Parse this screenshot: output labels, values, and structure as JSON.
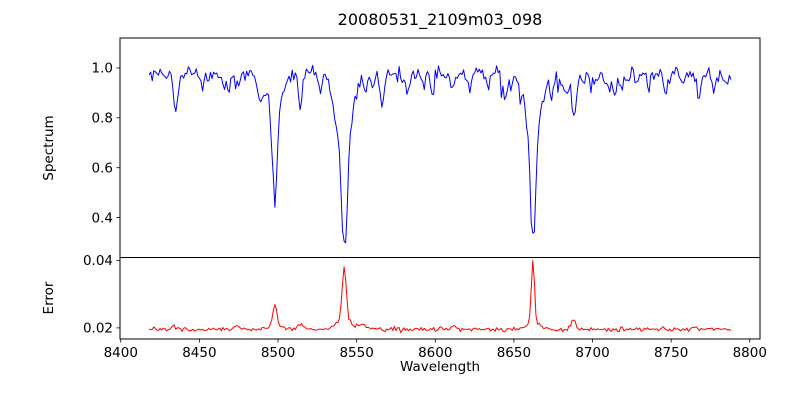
{
  "chart_data": {
    "type": "line",
    "title": "20080531_2109m03_098",
    "xlabel": "Wavelength",
    "x_range": [
      8418,
      8788
    ],
    "x_step": 1.0,
    "xlim": [
      8399.5,
      8806.5
    ],
    "xticks": [
      8400,
      8450,
      8500,
      8550,
      8600,
      8650,
      8700,
      8750,
      8800
    ],
    "xtick_labels": [
      "8400",
      "8450",
      "8500",
      "8550",
      "8600",
      "8650",
      "8700",
      "8750",
      "8800"
    ],
    "grid": false,
    "legend": "none",
    "seed": 20080531,
    "panels": [
      {
        "name": "spectrum",
        "ylabel": "Spectrum",
        "ylim": [
          0.24,
          1.12
        ],
        "yticks": [
          0.4,
          0.6,
          0.8,
          1.0
        ],
        "ytick_labels": [
          "0.4",
          "0.6",
          "0.8",
          "1.0"
        ],
        "series": {
          "name": "spectrum-flux",
          "color": "#0000ff",
          "continuum": 0.977,
          "noise_sigma": 0.016,
          "absorption_lines": [
            {
              "center": 8498.0,
              "depth": 0.35,
              "sigma": 1.5
            },
            {
              "center": 8498.0,
              "depth": 0.14,
              "sigma": 4.0
            },
            {
              "center": 8542.1,
              "depth": 0.44,
              "sigma": 1.9
            },
            {
              "center": 8542.1,
              "depth": 0.27,
              "sigma": 5.0
            },
            {
              "center": 8662.1,
              "depth": 0.43,
              "sigma": 1.7
            },
            {
              "center": 8662.1,
              "depth": 0.24,
              "sigma": 4.5
            },
            {
              "center": 8434.5,
              "depth": 0.12,
              "sigma": 1.3
            },
            {
              "center": 8452.0,
              "depth": 0.06,
              "sigma": 1.0
            },
            {
              "center": 8468.5,
              "depth": 0.09,
              "sigma": 1.2
            },
            {
              "center": 8488.0,
              "depth": 0.06,
              "sigma": 1.0
            },
            {
              "center": 8514.1,
              "depth": 0.14,
              "sigma": 1.4
            },
            {
              "center": 8527.0,
              "depth": 0.08,
              "sigma": 1.1
            },
            {
              "center": 8556.0,
              "depth": 0.07,
              "sigma": 1.0
            },
            {
              "center": 8566.0,
              "depth": 0.12,
              "sigma": 1.3
            },
            {
              "center": 8582.0,
              "depth": 0.07,
              "sigma": 1.0
            },
            {
              "center": 8598.0,
              "depth": 0.08,
              "sigma": 1.1
            },
            {
              "center": 8611.0,
              "depth": 0.06,
              "sigma": 1.0
            },
            {
              "center": 8622.0,
              "depth": 0.07,
              "sigma": 1.0
            },
            {
              "center": 8634.0,
              "depth": 0.05,
              "sigma": 1.0
            },
            {
              "center": 8644.0,
              "depth": 0.11,
              "sigma": 1.3
            },
            {
              "center": 8674.0,
              "depth": 0.09,
              "sigma": 1.2
            },
            {
              "center": 8688.0,
              "depth": 0.17,
              "sigma": 1.6
            },
            {
              "center": 8699.0,
              "depth": 0.07,
              "sigma": 1.0
            },
            {
              "center": 8710.0,
              "depth": 0.08,
              "sigma": 1.1
            },
            {
              "center": 8718.0,
              "depth": 0.07,
              "sigma": 1.0
            },
            {
              "center": 8728.0,
              "depth": 0.06,
              "sigma": 1.0
            },
            {
              "center": 8736.0,
              "depth": 0.07,
              "sigma": 1.0
            },
            {
              "center": 8747.0,
              "depth": 0.08,
              "sigma": 1.1
            },
            {
              "center": 8757.0,
              "depth": 0.06,
              "sigma": 1.0
            },
            {
              "center": 8768.0,
              "depth": 0.07,
              "sigma": 1.0
            },
            {
              "center": 8777.0,
              "depth": 0.08,
              "sigma": 1.0
            },
            {
              "center": 8785.0,
              "depth": 0.06,
              "sigma": 1.0
            }
          ],
          "texture_lines": {
            "count": 26,
            "depth_min": 0.02,
            "depth_max": 0.06,
            "sigma_min": 0.8,
            "sigma_max": 1.5,
            "x_min": 8425,
            "x_max": 8790
          }
        }
      },
      {
        "name": "error",
        "ylabel": "Error",
        "ylim": [
          0.0167,
          0.0409
        ],
        "yticks": [
          0.02,
          0.04
        ],
        "ytick_labels": [
          "0.02",
          "0.04"
        ],
        "series": {
          "name": "error-level",
          "color": "#ff0000",
          "baseline": 0.0196,
          "noise_sigma": 0.00033,
          "peaks": [
            {
              "center": 8498.0,
              "height": 0.0065,
              "sigma": 1.3
            },
            {
              "center": 8498.0,
              "height": 0.001,
              "sigma": 4.0
            },
            {
              "center": 8542.1,
              "height": 0.0155,
              "sigma": 1.3
            },
            {
              "center": 8542.1,
              "height": 0.003,
              "sigma": 5.0
            },
            {
              "center": 8662.1,
              "height": 0.0185,
              "sigma": 1.0
            },
            {
              "center": 8662.1,
              "height": 0.002,
              "sigma": 4.0
            },
            {
              "center": 8688.0,
              "height": 0.0026,
              "sigma": 1.5
            },
            {
              "center": 8514.0,
              "height": 0.0014,
              "sigma": 1.5
            },
            {
              "center": 8474.0,
              "height": 0.0011,
              "sigma": 1.5
            },
            {
              "center": 8554.0,
              "height": 0.0011,
              "sigma": 1.5
            },
            {
              "center": 8434.0,
              "height": 0.001,
              "sigma": 1.5
            },
            {
              "center": 8612.0,
              "height": 0.0008,
              "sigma": 1.5
            }
          ]
        }
      }
    ]
  }
}
